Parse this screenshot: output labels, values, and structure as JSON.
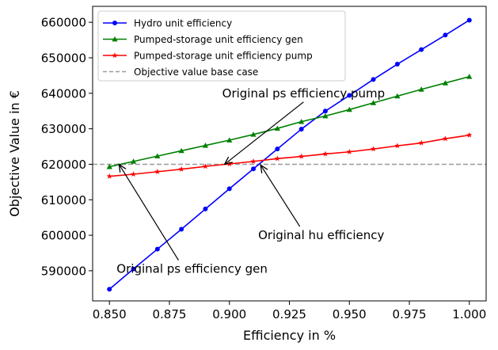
{
  "chart_data": {
    "type": "line",
    "x": [
      0.85,
      0.86,
      0.87,
      0.88,
      0.89,
      0.9,
      0.91,
      0.92,
      0.93,
      0.94,
      0.95,
      0.96,
      0.97,
      0.98,
      0.99,
      1.0
    ],
    "series": [
      {
        "name": "Hydro unit efficiency",
        "color": "#0000ff",
        "marker": "circle",
        "values": [
          584800,
          590500,
          596100,
          601700,
          607400,
          613100,
          618700,
          624300,
          629900,
          635000,
          639400,
          643900,
          648200,
          652300,
          656400,
          660600
        ]
      },
      {
        "name": "Pumped-storage unit efficiency gen",
        "color": "#008000",
        "marker": "triangle",
        "values": [
          619300,
          620800,
          622300,
          623800,
          625300,
          626800,
          628400,
          630100,
          632000,
          633600,
          635400,
          637300,
          639200,
          641100,
          642900,
          644700
        ]
      },
      {
        "name": "Pumped-storage unit efficiency pump",
        "color": "#ff0000",
        "marker": "star",
        "values": [
          616600,
          617200,
          617900,
          618600,
          619400,
          620100,
          620800,
          621600,
          622200,
          622900,
          623500,
          624300,
          625200,
          626000,
          627200,
          628200
        ]
      }
    ],
    "reference_line": {
      "name": "Objective value base case",
      "value": 620000,
      "color": "#999999",
      "style": "dashed"
    },
    "xlabel": "Efficiency in %",
    "ylabel": "Objective Value in €",
    "xlim": [
      0.843,
      1.007
    ],
    "ylim": [
      581500,
      664500
    ],
    "xticks": [
      0.85,
      0.875,
      0.9,
      0.925,
      0.95,
      0.975,
      1.0
    ],
    "xtick_labels": [
      "0.850",
      "0.875",
      "0.900",
      "0.925",
      "0.950",
      "0.975",
      "1.000"
    ],
    "yticks": [
      590000,
      600000,
      610000,
      620000,
      630000,
      640000,
      650000,
      660000
    ],
    "ytick_labels": [
      "590000",
      "600000",
      "610000",
      "620000",
      "630000",
      "640000",
      "650000",
      "660000"
    ],
    "grid": false,
    "legend_position": "top-left",
    "annotations": [
      {
        "text": "Original ps efficiency pump",
        "target_x": 0.898,
        "target_y": 620000,
        "text_x": 0.897,
        "text_y": 640000
      },
      {
        "text": "Original hu efficiency",
        "target_x": 0.913,
        "target_y": 619800,
        "text_x": 0.912,
        "text_y": 600000
      },
      {
        "text": "Original ps efficiency gen",
        "target_x": 0.854,
        "target_y": 620000,
        "text_x": 0.853,
        "text_y": 590500
      }
    ]
  }
}
